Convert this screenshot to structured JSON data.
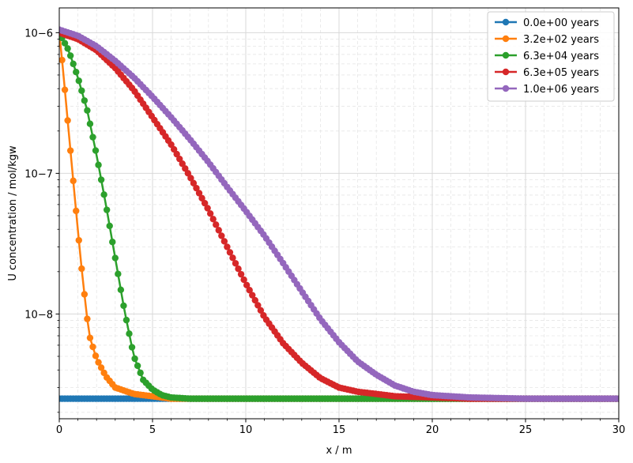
{
  "chart_data": {
    "type": "line",
    "title": "",
    "xlabel": "x / m",
    "ylabel": "U concentration / mol/kgw",
    "xlim": [
      0,
      30
    ],
    "ylim": [
      1.8e-09,
      1.5e-06
    ],
    "yscale": "log",
    "grid": true,
    "legend_position": "top-right",
    "x_ticks": [
      0,
      5,
      10,
      15,
      20,
      25,
      30
    ],
    "x_tick_labels": [
      "0",
      "5",
      "10",
      "15",
      "20",
      "25",
      "30"
    ],
    "y_ticks": [
      1e-08,
      1e-07,
      1e-06
    ],
    "y_tick_labels": [
      "10−8",
      "10−7",
      "10−6"
    ],
    "series": [
      {
        "name": "0.0e+00 years",
        "color": "#1f77b4",
        "x": [
          0,
          0.2,
          0.4,
          0.6,
          0.8,
          1.0,
          1.2,
          1.4,
          1.6,
          1.8,
          2.0
        ],
        "y": [
          2.5e-09,
          2.5e-09,
          2.5e-09,
          2.5e-09,
          2.5e-09,
          2.5e-09,
          2.5e-09,
          2.5e-09,
          2.5e-09,
          2.5e-09,
          2.5e-09
        ]
      },
      {
        "name": "3.2e+02 years",
        "color": "#ff7f0e",
        "x": [
          0,
          0.2,
          0.4,
          0.6,
          0.8,
          1.0,
          1.2,
          1.4,
          1.6,
          2.0,
          2.5,
          3,
          4,
          5,
          6,
          7
        ],
        "y": [
          1e-06,
          5.5e-07,
          2.8e-07,
          1.45e-07,
          7.5e-08,
          3.9e-08,
          2.1e-08,
          1.2e-08,
          7.1e-09,
          4.8e-09,
          3.6e-09,
          3e-09,
          2.7e-09,
          2.6e-09,
          2.5e-09,
          2.5e-09
        ]
      },
      {
        "name": "6.3e+04 years",
        "color": "#2ca02c",
        "x": [
          0,
          0.5,
          1.0,
          1.5,
          2.0,
          2.5,
          3.0,
          3.5,
          4.0,
          4.5,
          5.0,
          5.5,
          6.0,
          7,
          10,
          15,
          20
        ],
        "y": [
          1e-06,
          7.5e-07,
          4.8e-07,
          2.8e-07,
          1.35e-07,
          6e-08,
          2.5e-08,
          1.05e-08,
          5e-09,
          3.4e-09,
          2.9e-09,
          2.65e-09,
          2.55e-09,
          2.5e-09,
          2.5e-09,
          2.5e-09,
          2.5e-09
        ]
      },
      {
        "name": "6.3e+05 years",
        "color": "#d62728",
        "x": [
          0,
          1,
          2,
          3,
          4,
          5,
          6,
          7,
          8,
          9,
          10,
          11,
          12,
          13,
          14,
          15,
          16,
          17,
          18,
          20,
          22
        ],
        "y": [
          1e-06,
          9e-07,
          7.5e-07,
          5.6e-07,
          3.9e-07,
          2.5e-07,
          1.6e-07,
          9.5e-08,
          5.5e-08,
          3e-08,
          1.65e-08,
          9.5e-09,
          6.2e-09,
          4.5e-09,
          3.5e-09,
          3e-09,
          2.8e-09,
          2.7e-09,
          2.6e-09,
          2.55e-09,
          2.5e-09
        ]
      },
      {
        "name": "1.0e+06 years",
        "color": "#9467bd",
        "x": [
          0,
          1,
          2,
          3,
          4,
          5,
          6,
          7,
          8,
          9,
          10,
          11,
          12,
          13,
          14,
          15,
          16,
          17,
          18,
          19,
          20,
          22,
          25,
          30
        ],
        "y": [
          1.05e-06,
          9.5e-07,
          8e-07,
          6.3e-07,
          4.8e-07,
          3.5e-07,
          2.5e-07,
          1.75e-07,
          1.2e-07,
          8e-08,
          5.4e-08,
          3.6e-08,
          2.3e-08,
          1.45e-08,
          9.2e-09,
          6.3e-09,
          4.6e-09,
          3.7e-09,
          3.1e-09,
          2.8e-09,
          2.65e-09,
          2.55e-09,
          2.5e-09,
          2.5e-09
        ]
      }
    ]
  }
}
